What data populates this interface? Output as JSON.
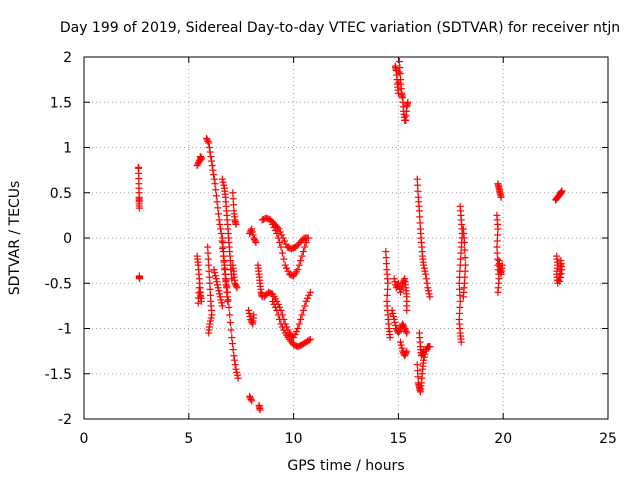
{
  "chart_data": {
    "type": "scatter",
    "title": "Day 199 of 2019, Sidereal Day-to-day VTEC variation (SDTVAR) for receiver ntjn",
    "xlabel": "GPS time / hours",
    "ylabel": "SDTVAR / TECUs",
    "xlim": [
      0,
      25
    ],
    "ylim": [
      -2,
      2
    ],
    "xticks": [
      0,
      5,
      10,
      15,
      20,
      25
    ],
    "yticks": [
      -2,
      -1.5,
      -1,
      -0.5,
      0,
      0.5,
      1,
      1.5,
      2
    ],
    "xtick_labels": [
      "0",
      "5",
      "10",
      "15",
      "20",
      "25"
    ],
    "ytick_labels": [
      "-2",
      "-1.5",
      "-1",
      "-0.5",
      "0",
      "0.5",
      "1",
      "1.5",
      "2"
    ],
    "grid": true,
    "marker": "+",
    "color": "#ff0000",
    "segments": [
      [
        [
          2.6,
          0.78
        ],
        [
          2.6,
          0.77
        ],
        [
          2.62,
          0.6
        ],
        [
          2.63,
          0.45
        ],
        [
          2.63,
          0.4
        ],
        [
          2.64,
          0.33
        ]
      ],
      [
        [
          2.64,
          -0.42
        ],
        [
          2.65,
          -0.45
        ]
      ],
      [
        [
          5.4,
          0.8
        ],
        [
          5.5,
          0.85
        ],
        [
          5.6,
          0.88
        ],
        [
          5.55,
          0.9
        ]
      ],
      [
        [
          5.4,
          -0.2
        ],
        [
          5.45,
          -0.3
        ],
        [
          5.5,
          -0.45
        ],
        [
          5.55,
          -0.6
        ],
        [
          5.6,
          -0.7
        ],
        [
          5.5,
          -0.55
        ],
        [
          5.45,
          -0.72
        ]
      ],
      [
        [
          5.85,
          1.1
        ],
        [
          5.95,
          1.05
        ],
        [
          6.05,
          0.9
        ],
        [
          6.15,
          0.75
        ],
        [
          6.25,
          0.6
        ],
        [
          6.35,
          0.4
        ],
        [
          6.45,
          0.2
        ],
        [
          6.55,
          0.05
        ],
        [
          6.65,
          -0.2
        ],
        [
          6.75,
          -0.4
        ],
        [
          6.85,
          -0.6
        ],
        [
          6.95,
          -0.85
        ],
        [
          7.05,
          -1.1
        ],
        [
          7.15,
          -1.3
        ],
        [
          7.25,
          -1.45
        ],
        [
          7.35,
          -1.55
        ]
      ],
      [
        [
          5.9,
          -0.1
        ],
        [
          5.95,
          -0.3
        ],
        [
          6.0,
          -0.5
        ],
        [
          6.05,
          -0.7
        ],
        [
          6.1,
          -0.85
        ],
        [
          6.0,
          -0.95
        ],
        [
          5.95,
          -1.05
        ]
      ],
      [
        [
          6.2,
          -0.35
        ],
        [
          6.3,
          -0.45
        ],
        [
          6.4,
          -0.55
        ],
        [
          6.5,
          -0.65
        ],
        [
          6.6,
          -0.75
        ]
      ],
      [
        [
          6.6,
          0.0
        ],
        [
          6.65,
          -0.15
        ],
        [
          6.7,
          -0.3
        ],
        [
          6.75,
          -0.45
        ],
        [
          6.8,
          -0.55
        ],
        [
          6.85,
          -0.7
        ]
      ],
      [
        [
          6.6,
          0.65
        ],
        [
          6.7,
          0.55
        ],
        [
          6.75,
          0.45
        ],
        [
          6.8,
          0.3
        ],
        [
          6.85,
          0.15
        ],
        [
          6.9,
          0.0
        ],
        [
          6.95,
          -0.15
        ],
        [
          7.0,
          -0.3
        ],
        [
          7.05,
          -0.45
        ]
      ],
      [
        [
          7.1,
          0.5
        ],
        [
          7.15,
          0.3
        ],
        [
          7.2,
          0.2
        ],
        [
          7.25,
          0.15
        ]
      ],
      [
        [
          7.1,
          -0.3
        ],
        [
          7.15,
          -0.4
        ],
        [
          7.2,
          -0.5
        ],
        [
          7.3,
          -0.55
        ]
      ],
      [
        [
          7.9,
          0.05
        ],
        [
          8.0,
          0.1
        ],
        [
          8.1,
          0.0
        ],
        [
          8.2,
          -0.05
        ]
      ],
      [
        [
          7.85,
          -0.8
        ],
        [
          7.95,
          -0.9
        ],
        [
          8.05,
          -0.95
        ],
        [
          8.1,
          -0.85
        ]
      ],
      [
        [
          7.9,
          -1.75
        ],
        [
          8.0,
          -1.8
        ]
      ],
      [
        [
          8.3,
          -0.3
        ],
        [
          8.35,
          -0.4
        ],
        [
          8.4,
          -0.5
        ],
        [
          8.45,
          -0.6
        ],
        [
          8.5,
          -0.65
        ]
      ],
      [
        [
          8.35,
          -1.85
        ],
        [
          8.4,
          -1.9
        ]
      ],
      [
        [
          8.5,
          0.2
        ],
        [
          8.7,
          0.22
        ],
        [
          8.9,
          0.2
        ],
        [
          9.1,
          0.15
        ],
        [
          9.3,
          0.1
        ],
        [
          9.5,
          0.0
        ],
        [
          9.7,
          -0.1
        ],
        [
          9.9,
          -0.12
        ],
        [
          10.1,
          -0.1
        ],
        [
          10.3,
          -0.05
        ],
        [
          10.5,
          0.0
        ],
        [
          10.7,
          0.0
        ]
      ],
      [
        [
          8.6,
          -0.65
        ],
        [
          8.8,
          -0.6
        ],
        [
          9.0,
          -0.62
        ],
        [
          9.2,
          -0.7
        ],
        [
          9.4,
          -0.8
        ],
        [
          9.6,
          -0.95
        ],
        [
          9.8,
          -1.05
        ],
        [
          10.0,
          -1.1
        ],
        [
          10.2,
          -1.0
        ],
        [
          10.4,
          -0.85
        ],
        [
          10.6,
          -0.7
        ],
        [
          10.8,
          -0.6
        ]
      ],
      [
        [
          9.0,
          0.15
        ],
        [
          9.2,
          0.05
        ],
        [
          9.4,
          -0.1
        ],
        [
          9.6,
          -0.3
        ],
        [
          9.8,
          -0.4
        ],
        [
          10.0,
          -0.42
        ],
        [
          10.2,
          -0.35
        ],
        [
          10.4,
          -0.2
        ],
        [
          10.6,
          -0.05
        ]
      ],
      [
        [
          9.0,
          -0.7
        ],
        [
          9.2,
          -0.8
        ],
        [
          9.4,
          -0.95
        ],
        [
          9.6,
          -1.05
        ],
        [
          9.8,
          -1.12
        ],
        [
          10.0,
          -1.18
        ],
        [
          10.2,
          -1.2
        ],
        [
          10.4,
          -1.18
        ],
        [
          10.6,
          -1.15
        ],
        [
          10.8,
          -1.12
        ]
      ],
      [
        [
          14.4,
          -0.15
        ],
        [
          14.45,
          -0.35
        ],
        [
          14.5,
          -0.5
        ],
        [
          14.45,
          -0.7
        ],
        [
          14.5,
          -0.85
        ],
        [
          14.55,
          -1.0
        ],
        [
          14.6,
          -1.1
        ]
      ],
      [
        [
          14.7,
          -0.8
        ],
        [
          14.8,
          -0.9
        ],
        [
          14.9,
          -1.0
        ],
        [
          15.0,
          -1.05
        ],
        [
          15.1,
          -1.0
        ],
        [
          15.2,
          -0.95
        ],
        [
          15.3,
          -1.0
        ],
        [
          15.4,
          -1.05
        ]
      ],
      [
        [
          14.85,
          1.9
        ],
        [
          14.9,
          1.85
        ],
        [
          14.95,
          1.7
        ],
        [
          15.0,
          1.6
        ],
        [
          15.05,
          1.95
        ],
        [
          15.1,
          1.75
        ],
        [
          15.15,
          1.6
        ],
        [
          15.2,
          1.55
        ],
        [
          15.25,
          1.4
        ],
        [
          15.3,
          1.3
        ],
        [
          15.35,
          1.3
        ],
        [
          15.4,
          1.45
        ],
        [
          15.45,
          1.5
        ]
      ],
      [
        [
          14.8,
          -0.45
        ],
        [
          14.9,
          -0.55
        ],
        [
          15.0,
          -0.5
        ],
        [
          15.1,
          -0.6
        ],
        [
          15.2,
          -0.5
        ],
        [
          15.3,
          -0.45
        ],
        [
          15.35,
          -0.55
        ],
        [
          15.4,
          -0.65
        ],
        [
          15.4,
          -0.8
        ]
      ],
      [
        [
          15.1,
          -1.15
        ],
        [
          15.2,
          -1.25
        ],
        [
          15.3,
          -1.3
        ],
        [
          15.4,
          -1.25
        ]
      ],
      [
        [
          15.9,
          0.65
        ],
        [
          15.95,
          0.45
        ],
        [
          16.0,
          0.3
        ],
        [
          16.05,
          0.1
        ],
        [
          16.1,
          -0.05
        ],
        [
          16.15,
          -0.2
        ],
        [
          16.2,
          -0.3
        ],
        [
          16.3,
          -0.4
        ],
        [
          16.4,
          -0.55
        ],
        [
          16.5,
          -0.65
        ]
      ],
      [
        [
          15.9,
          -1.4
        ],
        [
          15.95,
          -1.6
        ],
        [
          16.0,
          -1.65
        ],
        [
          16.05,
          -1.7
        ],
        [
          16.1,
          -1.6
        ],
        [
          16.15,
          -1.45
        ],
        [
          16.2,
          -1.35
        ],
        [
          16.3,
          -1.25
        ],
        [
          16.4,
          -1.2
        ],
        [
          16.5,
          -1.2
        ]
      ],
      [
        [
          16.0,
          -1.05
        ],
        [
          16.05,
          -1.2
        ],
        [
          16.1,
          -1.3
        ],
        [
          16.2,
          -1.25
        ]
      ],
      [
        [
          17.95,
          0.35
        ],
        [
          18.0,
          0.2
        ],
        [
          18.05,
          0.05
        ],
        [
          18.0,
          -0.1
        ],
        [
          17.95,
          -0.3
        ],
        [
          17.9,
          -0.5
        ],
        [
          17.95,
          -0.7
        ],
        [
          17.9,
          -0.9
        ],
        [
          17.95,
          -1.05
        ],
        [
          18.0,
          -1.15
        ]
      ],
      [
        [
          18.1,
          0.1
        ],
        [
          18.15,
          -0.05
        ],
        [
          18.2,
          -0.3
        ],
        [
          18.15,
          -0.5
        ],
        [
          18.1,
          -0.65
        ]
      ],
      [
        [
          19.75,
          0.6
        ],
        [
          19.8,
          0.55
        ],
        [
          19.85,
          0.5
        ],
        [
          19.9,
          0.45
        ]
      ],
      [
        [
          19.7,
          0.25
        ],
        [
          19.75,
          0.1
        ],
        [
          19.7,
          -0.1
        ],
        [
          19.75,
          -0.3
        ],
        [
          19.8,
          -0.45
        ],
        [
          19.75,
          -0.6
        ]
      ],
      [
        [
          19.8,
          -0.25
        ],
        [
          19.85,
          -0.35
        ],
        [
          19.9,
          -0.4
        ],
        [
          19.95,
          -0.3
        ]
      ],
      [
        [
          22.5,
          0.42
        ],
        [
          22.6,
          0.45
        ],
        [
          22.7,
          0.48
        ],
        [
          22.75,
          0.5
        ],
        [
          22.8,
          0.52
        ]
      ],
      [
        [
          22.55,
          -0.2
        ],
        [
          22.6,
          -0.3
        ],
        [
          22.55,
          -0.4
        ],
        [
          22.6,
          -0.5
        ],
        [
          22.7,
          -0.4
        ],
        [
          22.75,
          -0.25
        ],
        [
          22.8,
          -0.35
        ],
        [
          22.7,
          -0.48
        ]
      ]
    ]
  }
}
